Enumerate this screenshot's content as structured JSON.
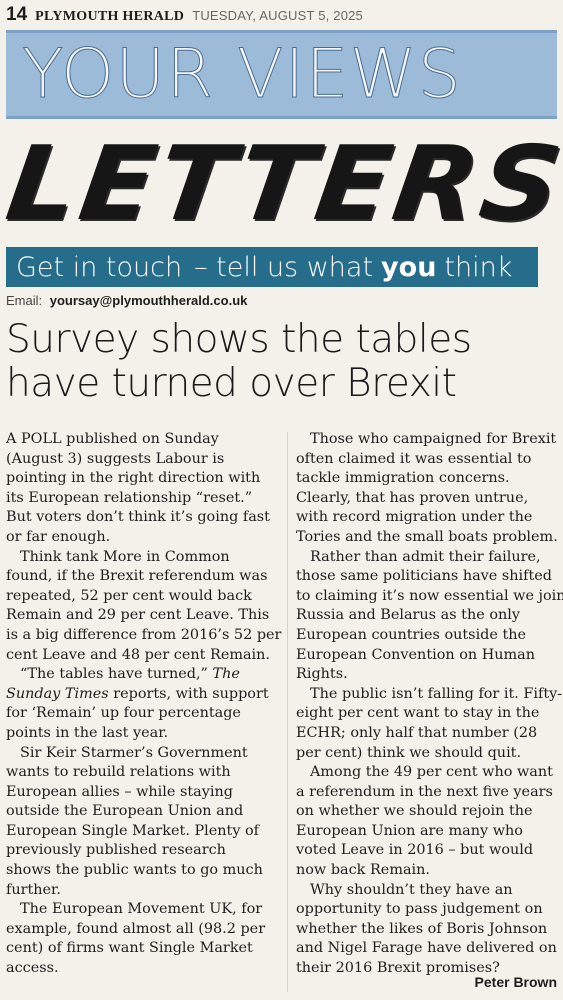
{
  "masthead": {
    "page_number": "14",
    "paper": "PLYMOUTH HERALD",
    "date": "TUESDAY, AUGUST 5, 2025"
  },
  "section": {
    "band_title": "YOUR VIEWS",
    "title": "LETTERS",
    "touch_part1": "Get in touch",
    "touch_part2": "– tell us what",
    "touch_emph": "you",
    "touch_part3": "think",
    "email_label": "Email:",
    "email_address": "yoursay@plymouthherald.co.uk"
  },
  "colors": {
    "band_blue": "#9cbbd8",
    "touch_teal": "#256d8a",
    "paper_bg": "#f4f1ea"
  },
  "article": {
    "headline_line1": "Survey shows the tables",
    "headline_line2": "have turned over Brexit",
    "left": {
      "p1": [
        "A POLL published on Sunday",
        "(August 3) suggests Labour is",
        "pointing in the right direction with",
        "its European relationship “reset.”",
        "But voters don’t think it’s going fast",
        "or far enough."
      ],
      "p2": [
        "Think tank More in Common",
        "found, if the Brexit referendum was",
        "repeated, 52 per cent would back",
        "Remain and 29 per cent Leave. This",
        "is a big difference from 2016’s 52 per",
        "cent Leave and 48 per cent Remain."
      ],
      "p3_a": "“The tables have turned,”",
      "p3_b": "The",
      "p3_c": "Sunday Times",
      "p3_d": "reports, with support",
      "p3_rest": [
        "for ‘Remain’ up four percentage",
        "points in the last year."
      ],
      "p4": [
        "Sir Keir Starmer’s Government",
        "wants to rebuild relations with",
        "European allies – while staying",
        "outside the European Union and",
        "European Single Market. Plenty of",
        "previously published research",
        "shows the public wants to go much",
        "further."
      ],
      "p5": [
        "The European Movement UK, for",
        "example, found almost all (98.2 per",
        "cent) of firms want Single Market",
        "access."
      ]
    },
    "right": {
      "p1": [
        "Those who campaigned for Brexit",
        "often claimed it was essential to",
        "tackle immigration concerns.",
        "Clearly, that has proven untrue,",
        "with record migration under the",
        "Tories and the small boats problem."
      ],
      "p2": [
        "Rather than admit their failure,",
        "those same politicians have shifted",
        "to claiming it’s now essential we join",
        "Russia and Belarus as the only",
        "European countries outside the",
        "European Convention on Human",
        "Rights."
      ],
      "p3": [
        "The public isn’t falling for it. Fifty-",
        "eight per cent want to stay in the",
        "ECHR; only half that number (28",
        "per cent) think we should quit."
      ],
      "p4": [
        "Among the 49 per cent who want",
        "a referendum in the next five years",
        "on whether we should rejoin the",
        "European Union are many who",
        "voted Leave in 2016 – but would",
        "now back Remain."
      ],
      "p5": [
        "Why shouldn’t they have an",
        "opportunity to pass judgement on",
        "whether the likes of Boris Johnson",
        "and Nigel Farage have delivered on",
        "their 2016 Brexit promises?"
      ],
      "signature": "Peter Brown"
    }
  }
}
